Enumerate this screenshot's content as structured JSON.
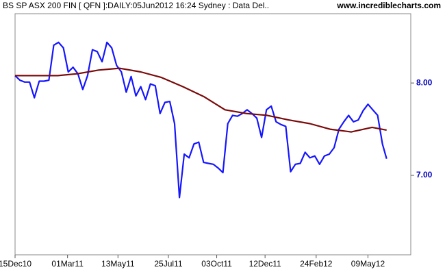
{
  "chart_data": {
    "type": "line",
    "title": "BS SP ASX 200 FIN [ QFN ]:DAILY:05Jun2012 16:24 Sydney : Data Del..",
    "source": "www.incrediblecharts.com",
    "xlim": [
      "2010-12-15",
      "2012-07-10"
    ],
    "ylim": [
      6.14,
      8.75
    ],
    "yticks": [
      {
        "value": 7,
        "label": "7.00"
      },
      {
        "value": 8,
        "label": "8.00"
      }
    ],
    "xticks": [
      {
        "value": "2010-12-15",
        "label": "15Dec10"
      },
      {
        "value": "2011-03-01",
        "label": "01Mar11"
      },
      {
        "value": "2011-05-13",
        "label": "13May11"
      },
      {
        "value": "2011-07-25",
        "label": "25Jul11"
      },
      {
        "value": "2011-10-03",
        "label": "03Oct11"
      },
      {
        "value": "2011-12-12",
        "label": "12Dec11"
      },
      {
        "value": "2012-02-24",
        "label": "24Feb12"
      },
      {
        "value": "2012-05-09",
        "label": "09May12"
      }
    ],
    "series": [
      {
        "color": "#1515ff",
        "x": [
          "2010-12-15",
          "2010-12-22",
          "2010-12-29",
          "2011-01-05",
          "2011-01-12",
          "2011-01-19",
          "2011-01-26",
          "2011-02-02",
          "2011-02-09",
          "2011-02-16",
          "2011-02-23",
          "2011-03-02",
          "2011-03-09",
          "2011-03-16",
          "2011-03-23",
          "2011-03-30",
          "2011-04-06",
          "2011-04-13",
          "2011-04-20",
          "2011-04-27",
          "2011-05-04",
          "2011-05-11",
          "2011-05-18",
          "2011-05-25",
          "2011-06-01",
          "2011-06-08",
          "2011-06-15",
          "2011-06-22",
          "2011-06-29",
          "2011-07-06",
          "2011-07-13",
          "2011-07-20",
          "2011-07-27",
          "2011-08-03",
          "2011-08-10",
          "2011-08-17",
          "2011-08-24",
          "2011-08-31",
          "2011-09-07",
          "2011-09-14",
          "2011-09-21",
          "2011-09-28",
          "2011-10-05",
          "2011-10-12",
          "2011-10-19",
          "2011-10-26",
          "2011-11-02",
          "2011-11-09",
          "2011-11-16",
          "2011-11-23",
          "2011-11-30",
          "2011-12-07",
          "2011-12-14",
          "2011-12-21",
          "2011-12-28",
          "2012-01-04",
          "2012-01-11",
          "2012-01-18",
          "2012-01-25",
          "2012-02-01",
          "2012-02-08",
          "2012-02-15",
          "2012-02-22",
          "2012-02-29",
          "2012-03-07",
          "2012-03-14",
          "2012-03-21",
          "2012-03-28",
          "2012-04-04",
          "2012-04-11",
          "2012-04-18",
          "2012-04-25",
          "2012-05-02",
          "2012-05-09",
          "2012-05-16",
          "2012-05-23",
          "2012-05-30",
          "2012-06-05"
        ],
        "values": [
          8.08,
          8.03,
          8.01,
          8.01,
          7.84,
          8.02,
          8.02,
          8.03,
          8.41,
          8.44,
          8.38,
          8.12,
          8.17,
          8.1,
          7.93,
          8.08,
          8.36,
          8.34,
          8.23,
          8.44,
          8.38,
          8.19,
          8.12,
          7.9,
          8.07,
          7.86,
          7.96,
          7.82,
          7.99,
          7.97,
          7.67,
          7.79,
          7.8,
          7.56,
          6.76,
          7.23,
          7.19,
          7.34,
          7.36,
          7.14,
          7.13,
          7.12,
          7.08,
          7.03,
          7.56,
          7.65,
          7.64,
          7.67,
          7.71,
          7.67,
          7.62,
          7.41,
          7.71,
          7.75,
          7.58,
          7.55,
          7.53,
          7.04,
          7.12,
          7.13,
          7.25,
          7.19,
          7.21,
          7.12,
          7.21,
          7.23,
          7.3,
          7.5,
          7.58,
          7.65,
          7.58,
          7.6,
          7.7,
          7.77,
          7.71,
          7.65,
          7.34,
          7.18
        ]
      },
      {
        "color": "#7a0a0a",
        "x": [
          "2010-12-15",
          "2011-01-15",
          "2011-02-15",
          "2011-03-15",
          "2011-04-15",
          "2011-05-15",
          "2011-06-15",
          "2011-07-15",
          "2011-08-15",
          "2011-09-15",
          "2011-10-15",
          "2011-11-15",
          "2011-12-15",
          "2012-01-15",
          "2012-02-15",
          "2012-03-15",
          "2012-04-15",
          "2012-05-15",
          "2012-06-05"
        ],
        "values": [
          8.08,
          8.08,
          8.08,
          8.1,
          8.14,
          8.16,
          8.12,
          8.06,
          7.96,
          7.85,
          7.71,
          7.67,
          7.65,
          7.6,
          7.56,
          7.5,
          7.47,
          7.52,
          7.49
        ]
      }
    ]
  }
}
